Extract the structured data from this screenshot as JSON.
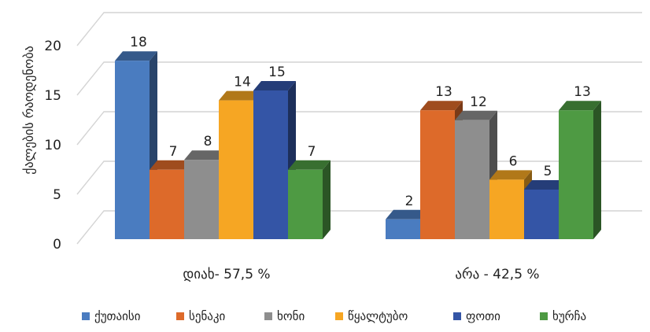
{
  "chart_data": {
    "type": "bar",
    "title": "",
    "xlabel": "",
    "ylabel": "ქალების რაოდენობა",
    "ylim": [
      0,
      20
    ],
    "yticks": [
      0,
      5,
      10,
      15,
      20
    ],
    "grid": true,
    "style": "3d-clustered",
    "legend_position": "bottom",
    "categories": [
      "დიახ- 57,5 %",
      "არა - 42,5 %"
    ],
    "series": [
      {
        "name": "ქუთაისი",
        "color": "#4a7cc0",
        "values": [
          18,
          2
        ]
      },
      {
        "name": "სენაკი",
        "color": "#dd6a2a",
        "values": [
          7,
          13
        ]
      },
      {
        "name": "ხონი",
        "color": "#8e8e8e",
        "values": [
          8,
          12
        ]
      },
      {
        "name": "წყალტუბო",
        "color": "#f6a623",
        "values": [
          14,
          6
        ]
      },
      {
        "name": "ფოთი",
        "color": "#3455a6",
        "values": [
          15,
          5
        ]
      },
      {
        "name": "ხურჩა",
        "color": "#4e9a43",
        "values": [
          7,
          13
        ]
      }
    ]
  }
}
